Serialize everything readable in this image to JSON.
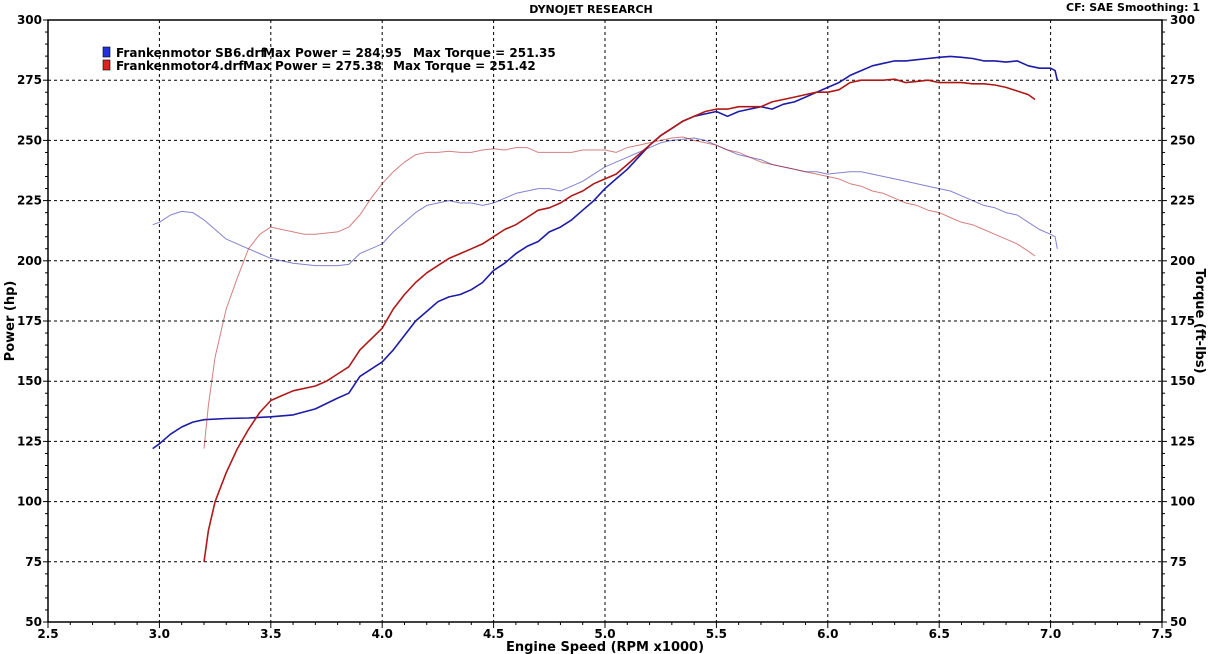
{
  "header": {
    "title": "DYNOJET RESEARCH",
    "info": "CF: SAE  Smoothing: 1"
  },
  "chart_data": {
    "type": "line",
    "title": "DYNOJET RESEARCH",
    "xlabel": "Engine Speed (RPM x1000)",
    "ylabel": "Power (hp)",
    "y2label": "Torque (ft-lbs)",
    "xlim": [
      2.5,
      7.5
    ],
    "ylim": [
      50,
      300
    ],
    "y2lim": [
      50,
      300
    ],
    "x_ticks": [
      "2.5",
      "3.0",
      "3.5",
      "4.0",
      "4.5",
      "5.0",
      "5.5",
      "6.0",
      "6.5",
      "7.0",
      "7.5"
    ],
    "y_ticks": [
      "50",
      "75",
      "100",
      "125",
      "150",
      "175",
      "200",
      "225",
      "250",
      "275",
      "300"
    ],
    "y2_ticks": [
      "50",
      "75",
      "100",
      "125",
      "150",
      "175",
      "200",
      "225",
      "250",
      "275",
      "300"
    ],
    "grid": true,
    "legend_position": "top-left",
    "legend": [
      {
        "file": "Frankenmotor SB6.drf",
        "power_label": "Max Power = 284.95",
        "torque_label": "Max Torque = 251.35",
        "color": "#1c1ca8"
      },
      {
        "file": "Frankenmotor4.drf",
        "power_label": "Max Power = 275.38",
        "torque_label": "Max Torque = 251.42",
        "color": "#b01818"
      }
    ],
    "series": [
      {
        "name": "Frankenmotor SB6.drf",
        "measure": "power",
        "color": "#1c1ca8",
        "style": "dark",
        "points": [
          [
            2.97,
            122
          ],
          [
            3.0,
            124
          ],
          [
            3.05,
            128
          ],
          [
            3.1,
            131
          ],
          [
            3.15,
            133
          ],
          [
            3.2,
            134
          ],
          [
            3.3,
            134.5
          ],
          [
            3.4,
            134.7
          ],
          [
            3.5,
            135.2
          ],
          [
            3.6,
            136
          ],
          [
            3.7,
            138.5
          ],
          [
            3.8,
            143
          ],
          [
            3.85,
            145
          ],
          [
            3.9,
            152
          ],
          [
            4.0,
            158
          ],
          [
            4.05,
            163
          ],
          [
            4.1,
            169
          ],
          [
            4.15,
            175
          ],
          [
            4.2,
            179
          ],
          [
            4.25,
            183
          ],
          [
            4.3,
            185
          ],
          [
            4.35,
            186
          ],
          [
            4.4,
            188
          ],
          [
            4.45,
            191
          ],
          [
            4.5,
            196
          ],
          [
            4.55,
            199
          ],
          [
            4.6,
            203
          ],
          [
            4.65,
            206
          ],
          [
            4.7,
            208
          ],
          [
            4.75,
            212
          ],
          [
            4.8,
            214
          ],
          [
            4.85,
            217
          ],
          [
            4.9,
            221
          ],
          [
            4.95,
            225
          ],
          [
            5.0,
            230
          ],
          [
            5.05,
            234
          ],
          [
            5.1,
            238
          ],
          [
            5.15,
            243
          ],
          [
            5.2,
            248
          ],
          [
            5.25,
            252
          ],
          [
            5.3,
            255
          ],
          [
            5.35,
            258
          ],
          [
            5.4,
            260
          ],
          [
            5.45,
            261
          ],
          [
            5.5,
            262
          ],
          [
            5.55,
            260
          ],
          [
            5.6,
            262
          ],
          [
            5.65,
            263
          ],
          [
            5.7,
            264
          ],
          [
            5.75,
            263
          ],
          [
            5.8,
            265
          ],
          [
            5.85,
            266
          ],
          [
            5.9,
            268
          ],
          [
            5.95,
            270
          ],
          [
            6.0,
            272
          ],
          [
            6.05,
            274
          ],
          [
            6.1,
            277
          ],
          [
            6.15,
            279
          ],
          [
            6.2,
            281
          ],
          [
            6.25,
            282
          ],
          [
            6.3,
            283
          ],
          [
            6.35,
            283
          ],
          [
            6.4,
            283.5
          ],
          [
            6.45,
            284
          ],
          [
            6.5,
            284.5
          ],
          [
            6.55,
            284.9
          ],
          [
            6.6,
            284.5
          ],
          [
            6.65,
            284
          ],
          [
            6.7,
            283
          ],
          [
            6.75,
            283
          ],
          [
            6.8,
            282.5
          ],
          [
            6.85,
            283
          ],
          [
            6.9,
            281
          ],
          [
            6.95,
            280
          ],
          [
            7.0,
            280
          ],
          [
            7.02,
            279
          ],
          [
            7.03,
            275
          ]
        ]
      },
      {
        "name": "Frankenmotor SB6.drf",
        "measure": "torque",
        "color": "#1c1ca8",
        "style": "light",
        "points": [
          [
            2.97,
            215
          ],
          [
            3.0,
            216
          ],
          [
            3.05,
            219
          ],
          [
            3.1,
            220.5
          ],
          [
            3.15,
            220
          ],
          [
            3.2,
            217
          ],
          [
            3.25,
            213
          ],
          [
            3.3,
            209
          ],
          [
            3.4,
            205
          ],
          [
            3.5,
            201
          ],
          [
            3.6,
            199
          ],
          [
            3.7,
            198
          ],
          [
            3.8,
            198
          ],
          [
            3.85,
            198.5
          ],
          [
            3.9,
            203
          ],
          [
            4.0,
            207
          ],
          [
            4.05,
            212
          ],
          [
            4.1,
            216
          ],
          [
            4.15,
            220
          ],
          [
            4.2,
            223
          ],
          [
            4.25,
            224
          ],
          [
            4.3,
            225
          ],
          [
            4.35,
            224
          ],
          [
            4.4,
            224
          ],
          [
            4.45,
            223
          ],
          [
            4.5,
            224
          ],
          [
            4.55,
            226
          ],
          [
            4.6,
            228
          ],
          [
            4.65,
            229
          ],
          [
            4.7,
            230
          ],
          [
            4.75,
            230
          ],
          [
            4.8,
            229
          ],
          [
            4.85,
            231
          ],
          [
            4.9,
            233
          ],
          [
            4.95,
            236
          ],
          [
            5.0,
            239
          ],
          [
            5.05,
            241
          ],
          [
            5.1,
            243
          ],
          [
            5.15,
            245
          ],
          [
            5.2,
            247
          ],
          [
            5.25,
            249
          ],
          [
            5.3,
            250
          ],
          [
            5.35,
            250.5
          ],
          [
            5.4,
            251
          ],
          [
            5.45,
            250
          ],
          [
            5.5,
            248
          ],
          [
            5.55,
            246
          ],
          [
            5.6,
            244
          ],
          [
            5.65,
            243
          ],
          [
            5.7,
            242
          ],
          [
            5.75,
            240
          ],
          [
            5.8,
            239
          ],
          [
            5.85,
            238
          ],
          [
            5.9,
            237
          ],
          [
            5.95,
            237
          ],
          [
            6.0,
            236
          ],
          [
            6.05,
            236.5
          ],
          [
            6.1,
            237
          ],
          [
            6.15,
            237
          ],
          [
            6.2,
            236
          ],
          [
            6.25,
            235
          ],
          [
            6.3,
            234
          ],
          [
            6.35,
            233
          ],
          [
            6.4,
            232
          ],
          [
            6.45,
            231
          ],
          [
            6.5,
            230
          ],
          [
            6.55,
            229
          ],
          [
            6.6,
            227
          ],
          [
            6.65,
            225
          ],
          [
            6.7,
            223
          ],
          [
            6.75,
            222
          ],
          [
            6.8,
            220
          ],
          [
            6.85,
            219
          ],
          [
            6.9,
            216
          ],
          [
            6.95,
            213
          ],
          [
            7.0,
            211
          ],
          [
            7.02,
            210
          ],
          [
            7.03,
            205
          ]
        ]
      },
      {
        "name": "Frankenmotor4.drf",
        "measure": "power",
        "color": "#b01818",
        "style": "dark",
        "points": [
          [
            3.2,
            75
          ],
          [
            3.22,
            88
          ],
          [
            3.25,
            100
          ],
          [
            3.3,
            112
          ],
          [
            3.35,
            122
          ],
          [
            3.4,
            130
          ],
          [
            3.45,
            137
          ],
          [
            3.5,
            142
          ],
          [
            3.55,
            144
          ],
          [
            3.6,
            146
          ],
          [
            3.7,
            148
          ],
          [
            3.75,
            150
          ],
          [
            3.8,
            153
          ],
          [
            3.85,
            156
          ],
          [
            3.9,
            163
          ],
          [
            4.0,
            172
          ],
          [
            4.05,
            180
          ],
          [
            4.1,
            186
          ],
          [
            4.15,
            191
          ],
          [
            4.2,
            195
          ],
          [
            4.25,
            198
          ],
          [
            4.3,
            201
          ],
          [
            4.35,
            203
          ],
          [
            4.4,
            205
          ],
          [
            4.45,
            207
          ],
          [
            4.5,
            210
          ],
          [
            4.55,
            213
          ],
          [
            4.6,
            215
          ],
          [
            4.65,
            218
          ],
          [
            4.7,
            221
          ],
          [
            4.75,
            222
          ],
          [
            4.8,
            224
          ],
          [
            4.85,
            227
          ],
          [
            4.9,
            229
          ],
          [
            4.95,
            232
          ],
          [
            5.0,
            234
          ],
          [
            5.05,
            236
          ],
          [
            5.1,
            240
          ],
          [
            5.15,
            244
          ],
          [
            5.2,
            248
          ],
          [
            5.25,
            252
          ],
          [
            5.3,
            255
          ],
          [
            5.35,
            258
          ],
          [
            5.4,
            260
          ],
          [
            5.45,
            262
          ],
          [
            5.5,
            263
          ],
          [
            5.55,
            263
          ],
          [
            5.6,
            264
          ],
          [
            5.65,
            264
          ],
          [
            5.7,
            264
          ],
          [
            5.75,
            266
          ],
          [
            5.8,
            267
          ],
          [
            5.85,
            268
          ],
          [
            5.9,
            269
          ],
          [
            5.95,
            270
          ],
          [
            6.0,
            270
          ],
          [
            6.05,
            271
          ],
          [
            6.1,
            274
          ],
          [
            6.15,
            275
          ],
          [
            6.2,
            275
          ],
          [
            6.25,
            275
          ],
          [
            6.3,
            275.4
          ],
          [
            6.35,
            274
          ],
          [
            6.4,
            274.5
          ],
          [
            6.45,
            275
          ],
          [
            6.5,
            274
          ],
          [
            6.55,
            274
          ],
          [
            6.6,
            274
          ],
          [
            6.65,
            273.5
          ],
          [
            6.7,
            273.5
          ],
          [
            6.75,
            273
          ],
          [
            6.8,
            272
          ],
          [
            6.85,
            270.5
          ],
          [
            6.9,
            269
          ],
          [
            6.93,
            267
          ]
        ]
      },
      {
        "name": "Frankenmotor4.drf",
        "measure": "torque",
        "color": "#b01818",
        "style": "light",
        "points": [
          [
            3.2,
            122
          ],
          [
            3.22,
            140
          ],
          [
            3.25,
            160
          ],
          [
            3.3,
            180
          ],
          [
            3.35,
            193
          ],
          [
            3.4,
            205
          ],
          [
            3.45,
            211
          ],
          [
            3.5,
            214
          ],
          [
            3.55,
            213
          ],
          [
            3.6,
            212
          ],
          [
            3.65,
            211
          ],
          [
            3.7,
            211
          ],
          [
            3.8,
            212
          ],
          [
            3.85,
            214
          ],
          [
            3.9,
            219
          ],
          [
            3.95,
            226
          ],
          [
            4.0,
            232
          ],
          [
            4.05,
            237
          ],
          [
            4.1,
            241
          ],
          [
            4.15,
            244
          ],
          [
            4.2,
            245
          ],
          [
            4.25,
            245
          ],
          [
            4.3,
            245.5
          ],
          [
            4.35,
            245
          ],
          [
            4.4,
            245
          ],
          [
            4.45,
            246
          ],
          [
            4.5,
            246.5
          ],
          [
            4.55,
            246
          ],
          [
            4.6,
            247
          ],
          [
            4.65,
            247
          ],
          [
            4.7,
            245
          ],
          [
            4.75,
            245
          ],
          [
            4.8,
            245
          ],
          [
            4.85,
            245
          ],
          [
            4.9,
            246
          ],
          [
            4.95,
            246
          ],
          [
            5.0,
            246
          ],
          [
            5.05,
            245
          ],
          [
            5.1,
            247
          ],
          [
            5.15,
            248
          ],
          [
            5.2,
            249
          ],
          [
            5.25,
            250
          ],
          [
            5.3,
            251
          ],
          [
            5.35,
            251.4
          ],
          [
            5.4,
            250
          ],
          [
            5.45,
            249
          ],
          [
            5.5,
            248
          ],
          [
            5.55,
            246
          ],
          [
            5.6,
            245
          ],
          [
            5.65,
            243
          ],
          [
            5.7,
            241
          ],
          [
            5.75,
            240
          ],
          [
            5.8,
            239
          ],
          [
            5.85,
            238
          ],
          [
            5.9,
            237
          ],
          [
            5.95,
            236
          ],
          [
            6.0,
            235
          ],
          [
            6.05,
            234
          ],
          [
            6.1,
            232
          ],
          [
            6.15,
            231
          ],
          [
            6.2,
            229
          ],
          [
            6.25,
            228
          ],
          [
            6.3,
            226
          ],
          [
            6.35,
            224
          ],
          [
            6.4,
            223
          ],
          [
            6.45,
            221
          ],
          [
            6.5,
            220
          ],
          [
            6.55,
            218
          ],
          [
            6.6,
            216
          ],
          [
            6.65,
            215
          ],
          [
            6.7,
            213
          ],
          [
            6.75,
            211
          ],
          [
            6.8,
            209
          ],
          [
            6.85,
            207
          ],
          [
            6.9,
            204
          ],
          [
            6.93,
            202
          ]
        ]
      }
    ]
  }
}
